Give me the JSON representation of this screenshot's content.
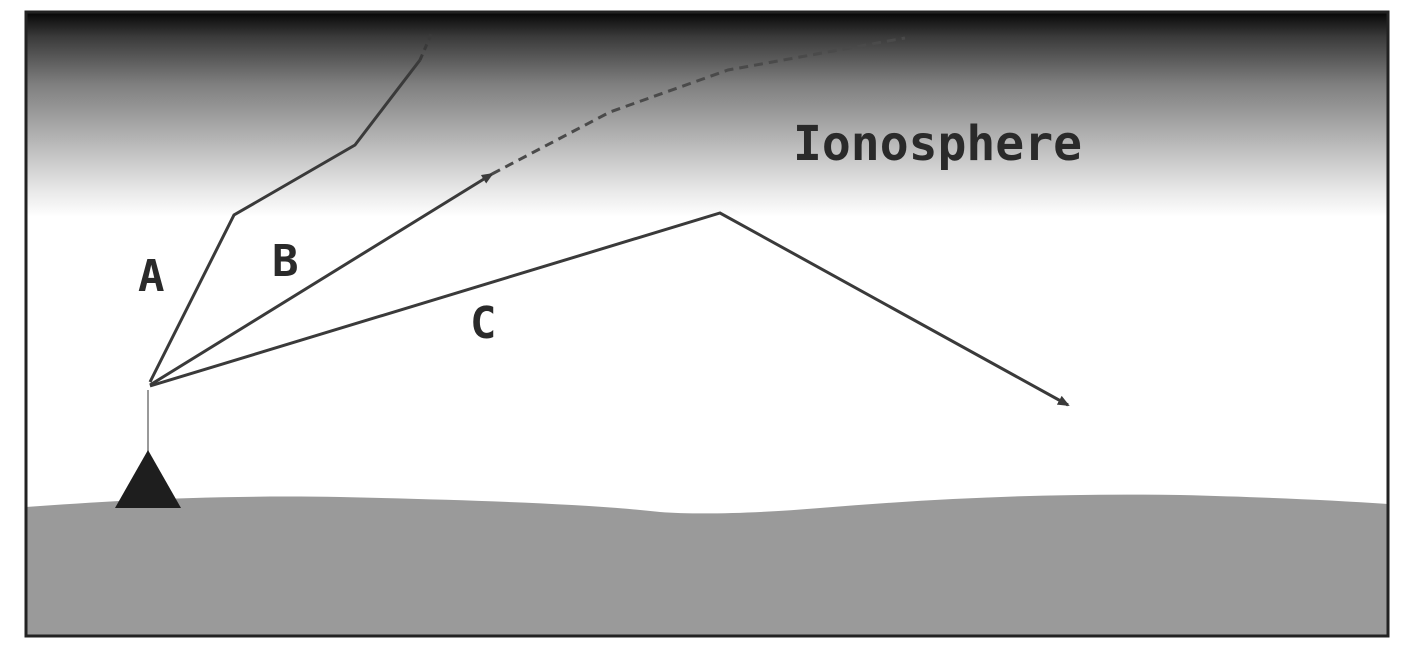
{
  "labels": {
    "ionosphere": "Ionosphere",
    "path_a": "A",
    "path_b": "B",
    "path_c": "C"
  },
  "colors": {
    "sky_top": "#0a0a0a",
    "sky_mid": "#8a8a8a",
    "air": "#ffffff",
    "ground": "#9a9a9a",
    "border": "#222222",
    "ray": "#3a3a3a",
    "antenna": "#1e1e1e"
  }
}
